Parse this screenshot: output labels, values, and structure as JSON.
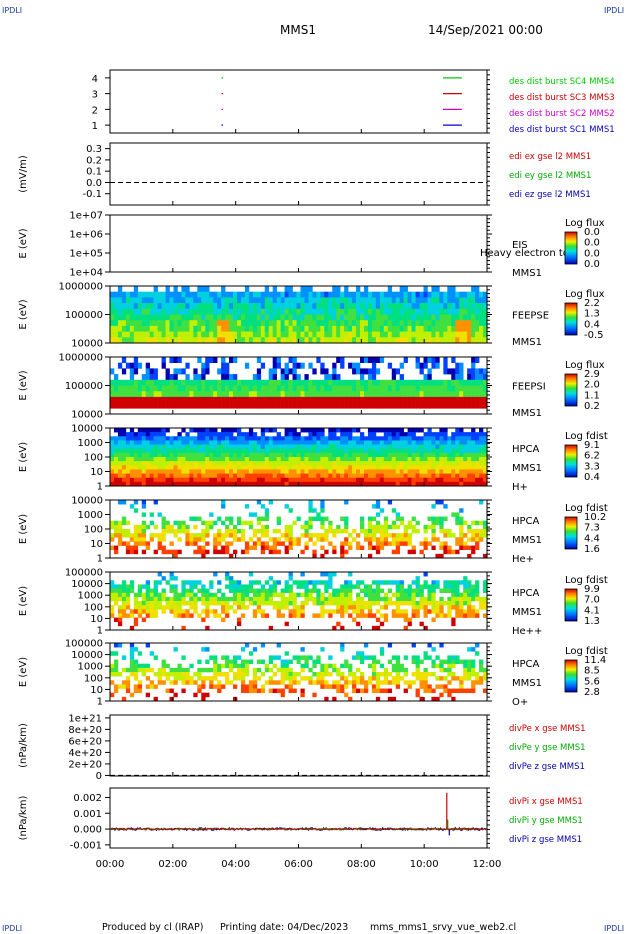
{
  "header": {
    "corner": "IPDLI",
    "spacecraft": "MMS1",
    "datetime": "14/Sep/2021 00:00"
  },
  "footer": {
    "produced": "Produced by cl (IRAP)",
    "printing": "Printing date: 04/Dec/2023",
    "filename": "mms_mms1_srvy_vue_web2.cl"
  },
  "time_axis": [
    "00:00",
    "02:00",
    "04:00",
    "06:00",
    "08:00",
    "10:00",
    "12:00"
  ],
  "chart_data": [
    {
      "type": "line",
      "id": "burst",
      "ylabel": "",
      "yticks": [
        "1",
        "2",
        "3",
        "4"
      ],
      "series": [
        {
          "name": "des dist burst SC1 MMS1",
          "color": "#0000cc",
          "level": 1,
          "intervals": [
            [
              3.55,
              3.6
            ],
            [
              10.6,
              11.2
            ]
          ]
        },
        {
          "name": "des dist burst SC2 MMS2",
          "color": "#cc00cc",
          "level": 2,
          "intervals": [
            [
              3.55,
              3.6
            ],
            [
              10.6,
              11.2
            ]
          ]
        },
        {
          "name": "des dist burst SC3 MMS3",
          "color": "#cc0000",
          "level": 3,
          "intervals": [
            [
              3.55,
              3.6
            ],
            [
              10.6,
              11.2
            ]
          ]
        },
        {
          "name": "des dist burst SC4 MMS4",
          "color": "#00cc00",
          "level": 4,
          "intervals": [
            [
              3.55,
              3.6
            ],
            [
              10.6,
              11.2
            ]
          ]
        }
      ],
      "ylim": [
        0.5,
        4.5
      ]
    },
    {
      "type": "line",
      "id": "edi",
      "ylabel": "(mV/m)",
      "yticks": [
        "0.3",
        "0.2",
        "0.1",
        "0.0",
        "-0.1"
      ],
      "ylim": [
        -0.2,
        0.35
      ],
      "series": [
        {
          "name": "edi ex gse l2 MMS1",
          "color": "#cc0000"
        },
        {
          "name": "edi ey gse l2 MMS1",
          "color": "#00aa00"
        },
        {
          "name": "edi ez gse l2 MMS1",
          "color": "#0000aa"
        }
      ]
    },
    {
      "type": "heatmap",
      "id": "eis",
      "ylabel": "E (eV)",
      "yticks": [
        "1e+07",
        "1e+06",
        "1e+05",
        "1e+04"
      ],
      "labels": [
        "EIS",
        "MMS1"
      ],
      "overlay": "Heavy electron top",
      "colorbar": {
        "title": "Log flux",
        "ticks": [
          "0.0",
          "0.0",
          "0.0",
          "0.0"
        ]
      }
    },
    {
      "type": "heatmap",
      "id": "feepse",
      "ylabel": "E (eV)",
      "yticks": [
        "1000000",
        "100000",
        "10000"
      ],
      "labels": [
        "FEEPSE",
        "MMS1"
      ],
      "colorbar": {
        "title": "Log flux",
        "ticks": [
          "2.2",
          "1.3",
          "0.4",
          "-0.5"
        ]
      }
    },
    {
      "type": "heatmap",
      "id": "feepsi",
      "ylabel": "E (eV)",
      "yticks": [
        "1000000",
        "100000",
        "10000"
      ],
      "labels": [
        "FEEPSI",
        "MMS1"
      ],
      "colorbar": {
        "title": "Log flux",
        "ticks": [
          "2.9",
          "2.0",
          "1.1",
          "0.2"
        ]
      }
    },
    {
      "type": "heatmap",
      "id": "hpca_h",
      "ylabel": "E (eV)",
      "yticks": [
        "10000",
        "1000",
        "100",
        "10",
        "1"
      ],
      "labels": [
        "HPCA",
        "MMS1",
        "H+"
      ],
      "colorbar": {
        "title": "Log fdist",
        "ticks": [
          "9.1",
          "6.2",
          "3.3",
          "0.4"
        ]
      }
    },
    {
      "type": "heatmap",
      "id": "hpca_he",
      "ylabel": "E (eV)",
      "yticks": [
        "10000",
        "1000",
        "100",
        "10",
        "1"
      ],
      "labels": [
        "HPCA",
        "MMS1",
        "He+"
      ],
      "colorbar": {
        "title": "Log fdist",
        "ticks": [
          "10.2",
          "7.3",
          "4.4",
          "1.6"
        ]
      }
    },
    {
      "type": "heatmap",
      "id": "hpca_hepp",
      "ylabel": "E (eV)",
      "yticks": [
        "100000",
        "10000",
        "1000",
        "100",
        "10",
        "1"
      ],
      "labels": [
        "HPCA",
        "MMS1",
        "He++"
      ],
      "colorbar": {
        "title": "Log fdist",
        "ticks": [
          "9.9",
          "7.0",
          "4.1",
          "1.3"
        ]
      }
    },
    {
      "type": "heatmap",
      "id": "hpca_o",
      "ylabel": "E (eV)",
      "yticks": [
        "100000",
        "10000",
        "1000",
        "100",
        "10",
        "1"
      ],
      "labels": [
        "HPCA",
        "MMS1",
        "O+"
      ],
      "colorbar": {
        "title": "Log fdist",
        "ticks": [
          "11.4",
          "8.5",
          "5.6",
          "2.8"
        ]
      }
    },
    {
      "type": "line",
      "id": "divpe",
      "ylabel": "(nPa/km)",
      "yticks": [
        "1e+21",
        "8e+20",
        "6e+20",
        "4e+20",
        "2e+20",
        "0"
      ],
      "ylim": [
        -1e+19,
        1.05e+21
      ],
      "series": [
        {
          "name": "divPe x gse MMS1",
          "color": "#cc0000"
        },
        {
          "name": "divPe y gse MMS1",
          "color": "#00aa00"
        },
        {
          "name": "divPe z gse MMS1",
          "color": "#0000aa"
        }
      ]
    },
    {
      "type": "line",
      "id": "divpi",
      "ylabel": "(nPa/km)",
      "yticks": [
        "0.002",
        "0.001",
        "0.000",
        "-0.001"
      ],
      "ylim": [
        -0.0012,
        0.0026
      ],
      "series": [
        {
          "name": "divPi x gse MMS1",
          "color": "#cc0000",
          "spike": {
            "t": 10.72,
            "v": 0.0023
          }
        },
        {
          "name": "divPi y gse MMS1",
          "color": "#00aa00",
          "spike": {
            "t": 10.75,
            "v": 0.0006
          }
        },
        {
          "name": "divPi z gse MMS1",
          "color": "#0000aa",
          "spike": {
            "t": 10.8,
            "v": -0.0004
          }
        }
      ]
    }
  ]
}
